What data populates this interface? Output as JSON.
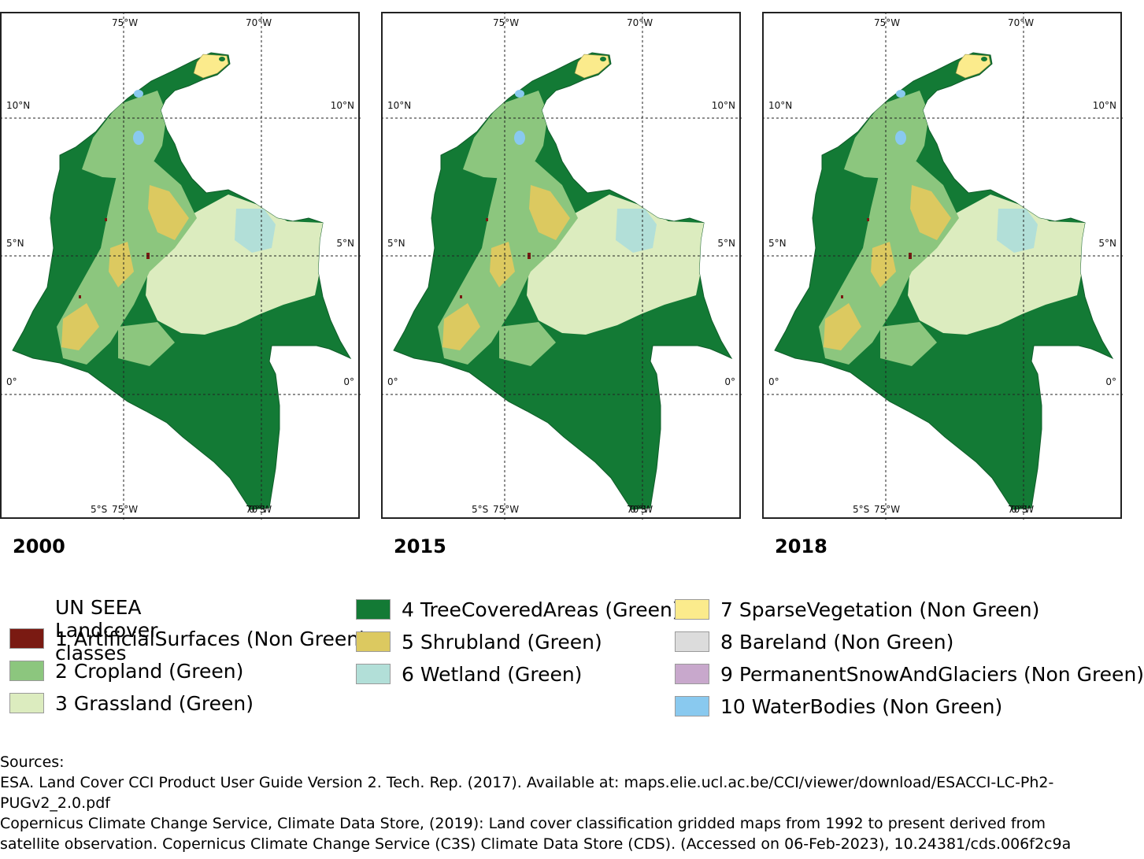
{
  "panels": [
    {
      "year": "2000",
      "ticks": {
        "top_75w": "75°W",
        "top_70w": "70°W",
        "left_10n": "10°N",
        "right_10n": "10°N",
        "left_5n": "5°N",
        "right_5n": "5°N",
        "left_0": "0°",
        "right_0": "0°",
        "bottom_5s": "5°S",
        "bottom_75w": "75°W",
        "bottom_70w": "70°W",
        "bottom_0s": "0°S"
      }
    },
    {
      "year": "2015",
      "ticks": {
        "top_75w": "75°W",
        "top_70w": "70°W",
        "left_10n": "10°N",
        "right_10n": "10°N",
        "left_5n": "5°N",
        "right_5n": "5°N",
        "left_0": "0°",
        "right_0": "0°",
        "bottom_5s": "5°S",
        "bottom_75w": "75°W",
        "bottom_70w": "70°W",
        "bottom_0s": "0°S"
      }
    },
    {
      "year": "2018",
      "ticks": {
        "top_75w": "75°W",
        "top_70w": "70°W",
        "left_10n": "10°N",
        "right_10n": "10°N",
        "left_5n": "5°N",
        "right_5n": "5°N",
        "left_0": "0°",
        "right_0": "0°",
        "bottom_5s": "5°S",
        "bottom_75w": "75°W",
        "bottom_70w": "70°W",
        "bottom_0s": "0°S"
      }
    }
  ],
  "legend": {
    "title": "UN SEEA Landcover classes",
    "items": [
      {
        "label": "1 ArtificialSurfaces (Non Green)",
        "color": "#7a1a12"
      },
      {
        "label": "2 Cropland (Green)",
        "color": "#8cc67e"
      },
      {
        "label": "3 Grassland (Green)",
        "color": "#dcecbf"
      },
      {
        "label": "4 TreeCoveredAreas (Green)",
        "color": "#137a35"
      },
      {
        "label": "5 Shrubland (Green)",
        "color": "#dcc960"
      },
      {
        "label": "6 Wetland (Green)",
        "color": "#b2dfd8"
      },
      {
        "label": "7 SparseVegetation (Non Green)",
        "color": "#fbeb8c"
      },
      {
        "label": "8 Bareland (Non Green)",
        "color": "#dcdcdc"
      },
      {
        "label": "9 PermanentSnowAndGlaciers (Non Green)",
        "color": "#c8a8cc"
      },
      {
        "label": "10 WaterBodies (Non Green)",
        "color": "#89c9ef"
      }
    ]
  },
  "sources": {
    "heading": "Sources:",
    "esa_line1": "ESA. Land Cover CCI Product User Guide Version 2. Tech. Rep. (2017). Available at: maps.elie.ucl.ac.be/CCI/viewer/download/ESACCI-LC-Ph2-",
    "esa_line2": "PUGv2_2.0.pdf",
    "c3s_line1": "Copernicus Climate Change Service, Climate Data Store, (2019): Land cover classification gridded maps from 1992 to present derived from",
    "c3s_line2": "satellite observation. Copernicus Climate Change Service (C3S) Climate Data Store (CDS). (Accessed on 06-Feb-2023), 10.24381/cds.006f2c9a"
  }
}
